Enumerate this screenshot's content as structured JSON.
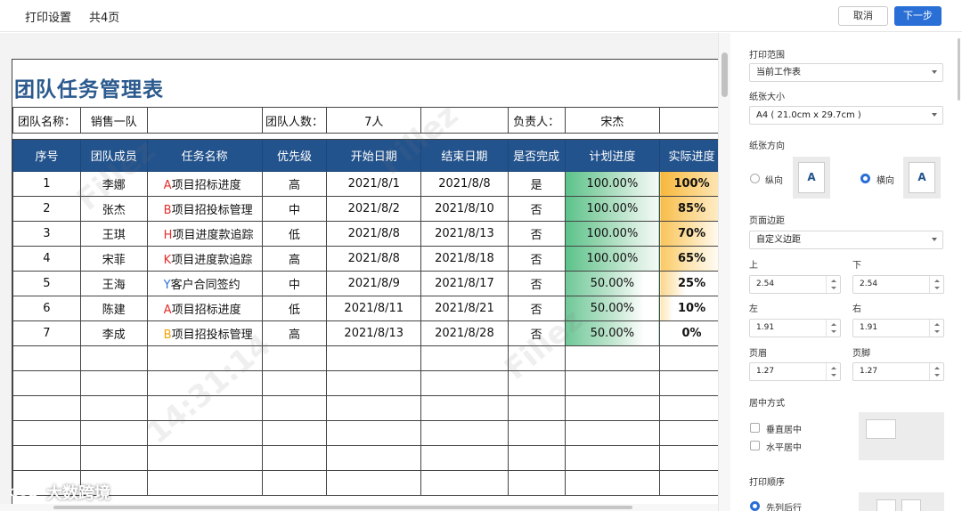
{
  "topbar": {
    "title": "打印设置",
    "pages": "共4页",
    "cancel_label": "取消",
    "next_label": "下一步"
  },
  "sheet": {
    "title": "团队任务管理表",
    "info": {
      "team_name_label": "团队名称：",
      "team_name_value": "销售一队",
      "team_count_label": "团队人数：",
      "team_count_value": "7人",
      "owner_label": "负责人：",
      "owner_value": "宋杰"
    },
    "headers": [
      "序号",
      "团队成员",
      "任务名称",
      "优先级",
      "开始日期",
      "结束日期",
      "是否完成",
      "计划进度",
      "实际进度"
    ],
    "rows": [
      {
        "no": "1",
        "member": "李娜",
        "task_letter": "A",
        "letter_color": "#e0302c",
        "task": "项目招标进度",
        "priority": "高",
        "start": "2021/8/1",
        "end": "2021/8/8",
        "done": "是",
        "plan": "100.00%",
        "plan_fill": 1.0,
        "actual": "100%",
        "actual_fill": 1.0
      },
      {
        "no": "2",
        "member": "张杰",
        "task_letter": "B",
        "letter_color": "#e0302c",
        "task": "项目招投标管理",
        "priority": "中",
        "start": "2021/8/2",
        "end": "2021/8/10",
        "done": "否",
        "plan": "100.00%",
        "plan_fill": 1.0,
        "actual": "85%",
        "actual_fill": 0.85
      },
      {
        "no": "3",
        "member": "王琪",
        "task_letter": "H",
        "letter_color": "#e0302c",
        "task": "项目进度款追踪",
        "priority": "低",
        "start": "2021/8/8",
        "end": "2021/8/13",
        "done": "否",
        "plan": "100.00%",
        "plan_fill": 1.0,
        "actual": "70%",
        "actual_fill": 0.7
      },
      {
        "no": "4",
        "member": "宋菲",
        "task_letter": "K",
        "letter_color": "#e0302c",
        "task": "项目进度款追踪",
        "priority": "高",
        "start": "2021/8/8",
        "end": "2021/8/18",
        "done": "否",
        "plan": "100.00%",
        "plan_fill": 1.0,
        "actual": "65%",
        "actual_fill": 0.65
      },
      {
        "no": "5",
        "member": "王海",
        "task_letter": "Y",
        "letter_color": "#2a6fd6",
        "task": "客户合同签约",
        "priority": "中",
        "start": "2021/8/9",
        "end": "2021/8/17",
        "done": "否",
        "plan": "50.00%",
        "plan_fill": 0.5,
        "actual": "25%",
        "actual_fill": 0.25
      },
      {
        "no": "6",
        "member": "陈建",
        "task_letter": "A",
        "letter_color": "#e0302c",
        "task": "项目招标进度",
        "priority": "低",
        "start": "2021/8/11",
        "end": "2021/8/21",
        "done": "否",
        "plan": "50.00%",
        "plan_fill": 0.5,
        "actual": "10%",
        "actual_fill": 0.1
      },
      {
        "no": "7",
        "member": "李成",
        "task_letter": "B",
        "letter_color": "#f3a400",
        "task": "项目招投标管理",
        "priority": "高",
        "start": "2021/8/13",
        "end": "2021/8/28",
        "done": "否",
        "plan": "50.00%",
        "plan_fill": 0.5,
        "actual": "0%",
        "actual_fill": 0.0
      }
    ]
  },
  "colors": {
    "accent": "#2a6fd6",
    "header_bg": "#23538c",
    "priority_high": "#ee7d2e",
    "priority_mid": "#f3a400",
    "plan_fill": "#5cc28a",
    "actual_fill": "#f7b73c"
  },
  "settings": {
    "print_range_label": "打印范围",
    "print_range_value": "当前工作表",
    "paper_size_label": "纸张大小",
    "paper_size_value": "A4 ( 21.0cm x 29.7cm )",
    "orientation_label": "纸张方向",
    "portrait_label": "纵向",
    "landscape_label": "横向",
    "orientation_icon_text": "A",
    "margins_label": "页面边距",
    "margins_value": "自定义边距",
    "top_label": "上",
    "top_value": "2.54",
    "bottom_label": "下",
    "bottom_value": "2.54",
    "left_label": "左",
    "left_value": "1.91",
    "right_label": "右",
    "right_value": "1.91",
    "header_label": "页眉",
    "header_value": "1.27",
    "footer_label": "页脚",
    "footer_value": "1.27",
    "centering_label": "居中方式",
    "vcenter_label": "垂直居中",
    "hcenter_label": "水平居中",
    "order_label": "打印顺序",
    "order_value": "先列后行"
  },
  "watermark": {
    "brand": "大数跨境"
  }
}
